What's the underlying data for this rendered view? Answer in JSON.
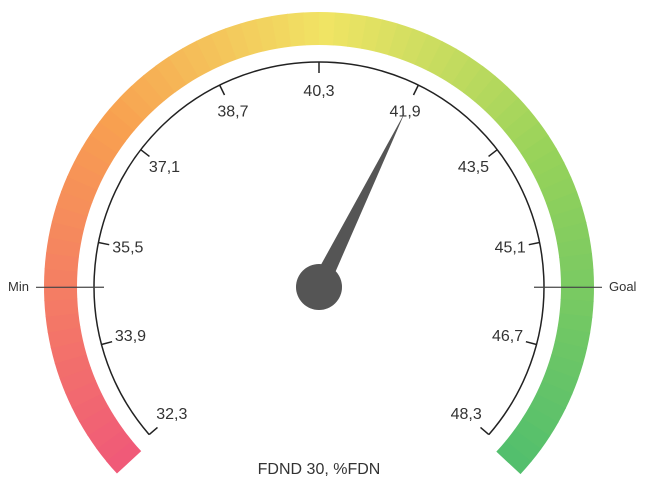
{
  "chart_data": {
    "type": "gauge",
    "title": "FDND 30, %FDN",
    "value": 41.9,
    "ylim": [
      32.3,
      48.3
    ],
    "yticks": [
      {
        "value": 32.3,
        "label": "32,3"
      },
      {
        "value": 33.9,
        "label": "33,9"
      },
      {
        "value": 35.5,
        "label": "35,5"
      },
      {
        "value": 37.1,
        "label": "37,1"
      },
      {
        "value": 38.7,
        "label": "38,7"
      },
      {
        "value": 40.3,
        "label": "40,3"
      },
      {
        "value": 41.9,
        "label": "41,9"
      },
      {
        "value": 43.5,
        "label": "43,5"
      },
      {
        "value": 45.1,
        "label": "45,1"
      },
      {
        "value": 46.7,
        "label": "46,7"
      },
      {
        "value": 48.3,
        "label": "48,3"
      }
    ],
    "markers": [
      {
        "label": "Min",
        "value": 34.8
      },
      {
        "label": "Goal",
        "value": 45.8
      }
    ],
    "needle_color": "#555555"
  }
}
